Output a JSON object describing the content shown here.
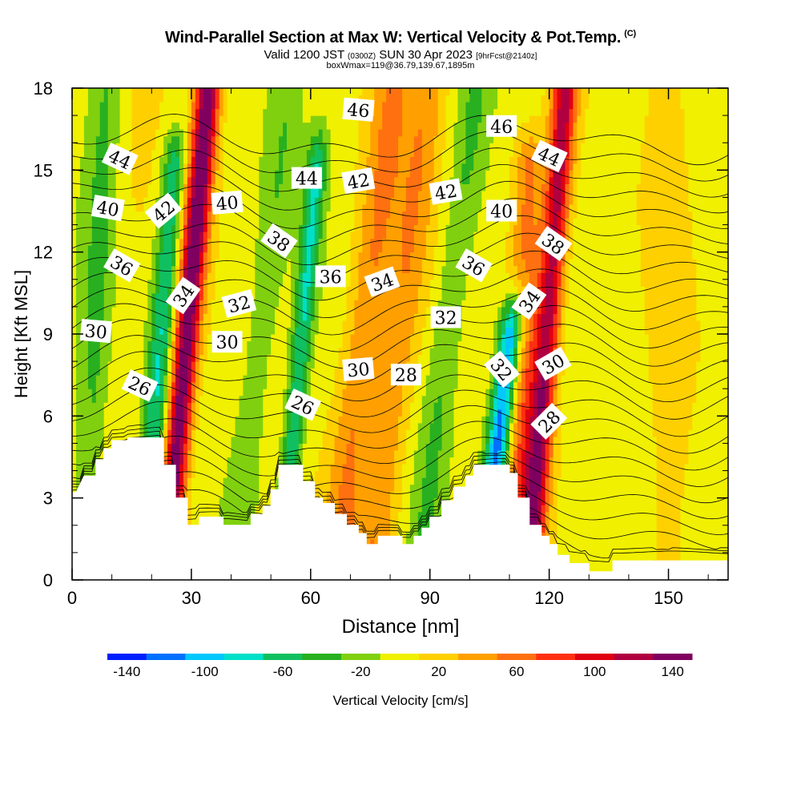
{
  "title": {
    "main": "Wind-Parallel Section at Max W: Vertical Velocity & Pot.Temp.",
    "copyright": "(C)",
    "valid_prefix": "Valid 1200 JST",
    "valid_utc": "(0300Z)",
    "valid_date": "SUN 30 Apr 2023",
    "forecast": "[9hrFcst@2140z]",
    "subtitle": "boxWmax=119@36.79,139.67,1895m"
  },
  "chart_data": {
    "type": "heatmap",
    "xlabel": "Distance [nm]",
    "ylabel": "Height [Kft MSL]",
    "xlim": [
      0,
      165
    ],
    "ylim": [
      0,
      18
    ],
    "x_ticks": [
      "0",
      "30",
      "60",
      "90",
      "120",
      "150"
    ],
    "y_ticks": [
      "0",
      "3",
      "6",
      "9",
      "12",
      "15",
      "18"
    ],
    "colorbar": {
      "label": "Vertical Velocity [cm/s]",
      "ticks": [
        "-140",
        "-100",
        "-60",
        "-20",
        "20",
        "60",
        "100",
        "140"
      ],
      "range": [
        -150,
        150
      ],
      "step": 20,
      "colors": [
        "#0020ff",
        "#0070ff",
        "#00c8ff",
        "#00e0c8",
        "#10c060",
        "#28b020",
        "#80d010",
        "#f0f000",
        "#ffd000",
        "#ffa000",
        "#ff7010",
        "#ff3010",
        "#e00010",
        "#b00040",
        "#800060"
      ]
    },
    "terrain_kft": [
      [
        0,
        3.2
      ],
      [
        1,
        3.2
      ],
      [
        3,
        3.8
      ],
      [
        6,
        3.8
      ],
      [
        6,
        4.4
      ],
      [
        8,
        4.4
      ],
      [
        8,
        4.8
      ],
      [
        10,
        4.8
      ],
      [
        10,
        5.1
      ],
      [
        14,
        5.1
      ],
      [
        14,
        5.2
      ],
      [
        23,
        5.2
      ],
      [
        23,
        4.2
      ],
      [
        26,
        4.2
      ],
      [
        26,
        3
      ],
      [
        29,
        3
      ],
      [
        29,
        2
      ],
      [
        32,
        2
      ],
      [
        32,
        2.3
      ],
      [
        38,
        2.3
      ],
      [
        38,
        2
      ],
      [
        45,
        2
      ],
      [
        45,
        2.4
      ],
      [
        48,
        2.4
      ],
      [
        48,
        2.7
      ],
      [
        50,
        2.7
      ],
      [
        50,
        3.3
      ],
      [
        52,
        3.3
      ],
      [
        52,
        4.2
      ],
      [
        58,
        4.2
      ],
      [
        58,
        3.6
      ],
      [
        61,
        3.6
      ],
      [
        61,
        3
      ],
      [
        63,
        3
      ],
      [
        63,
        2.8
      ],
      [
        66,
        2.8
      ],
      [
        66,
        2.4
      ],
      [
        69,
        2.4
      ],
      [
        69,
        2
      ],
      [
        72,
        2
      ],
      [
        72,
        1.7
      ],
      [
        74,
        1.7
      ],
      [
        74,
        1.3
      ],
      [
        77,
        1.3
      ],
      [
        77,
        1.6
      ],
      [
        83,
        1.6
      ],
      [
        83,
        1.3
      ],
      [
        86,
        1.3
      ],
      [
        86,
        1.6
      ],
      [
        88,
        1.6
      ],
      [
        88,
        1.9
      ],
      [
        90,
        1.9
      ],
      [
        90,
        2.3
      ],
      [
        93,
        2.3
      ],
      [
        93,
        2.9
      ],
      [
        96,
        2.9
      ],
      [
        96,
        3.4
      ],
      [
        99,
        3.4
      ],
      [
        99,
        3.8
      ],
      [
        101,
        3.8
      ],
      [
        101,
        4.2
      ],
      [
        110,
        4.2
      ],
      [
        110,
        3.9
      ],
      [
        112,
        3.9
      ],
      [
        112,
        3
      ],
      [
        115,
        3
      ],
      [
        115,
        2
      ],
      [
        118,
        2
      ],
      [
        118,
        1.6
      ],
      [
        120,
        1.6
      ],
      [
        120,
        1.3
      ],
      [
        122,
        1.3
      ],
      [
        122,
        0.9
      ],
      [
        125,
        0.9
      ],
      [
        125,
        0.6
      ],
      [
        130,
        0.6
      ],
      [
        130,
        0.3
      ],
      [
        134,
        0.3
      ],
      [
        134,
        0.3
      ],
      [
        136,
        0.3
      ],
      [
        136,
        0.7
      ],
      [
        165,
        0.7
      ]
    ],
    "updrafts": [
      {
        "x": 27,
        "amp": 150,
        "width": 3.2,
        "z_top": 18,
        "tilt": 0.6
      },
      {
        "x": 71,
        "amp": 50,
        "width": 5,
        "z_top": 18,
        "tilt": 0.8
      },
      {
        "x": 80,
        "amp": 45,
        "width": 5,
        "z_top": 18,
        "tilt": 0.8
      },
      {
        "x": 118,
        "amp": 120,
        "width": 3.2,
        "z_top": 18,
        "tilt": 0.5
      },
      {
        "x": 113,
        "amp": 60,
        "width": 4,
        "z_top": 15,
        "tilt": 0.2
      },
      {
        "x": 12,
        "amp": 10,
        "width": 6,
        "z_top": 18,
        "tilt": 0.5
      },
      {
        "x": 150,
        "amp": 20,
        "width": 6,
        "z_top": 18,
        "tilt": 0
      }
    ],
    "downdrafts": [
      {
        "x": 21,
        "amp": -70,
        "width": 3,
        "z_top": 15,
        "tilt": 0.5
      },
      {
        "x": 56,
        "amp": -70,
        "width": 2.5,
        "z_top": 15,
        "tilt": 0.6
      },
      {
        "x": 108,
        "amp": -130,
        "width": 3,
        "z_top": 9,
        "tilt": 0.8
      },
      {
        "x": 92,
        "amp": -30,
        "width": 4,
        "z_top": 18,
        "tilt": 0.8
      },
      {
        "x": 45,
        "amp": -25,
        "width": 4,
        "z_top": 18,
        "tilt": 0.8
      },
      {
        "x": 5,
        "amp": -35,
        "width": 4,
        "z_top": 18,
        "tilt": 0.3
      }
    ],
    "contour_labels": [
      {
        "text": "44",
        "x": 12,
        "z": 15.4,
        "rot": 25
      },
      {
        "text": "40",
        "x": 9,
        "z": 13.6,
        "rot": 10
      },
      {
        "text": "36",
        "x": 12.5,
        "z": 11.5,
        "rot": 30
      },
      {
        "text": "30",
        "x": 6,
        "z": 9.1,
        "rot": 5
      },
      {
        "text": "26",
        "x": 17,
        "z": 7.1,
        "rot": 25
      },
      {
        "text": "42",
        "x": 23,
        "z": 13.5,
        "rot": -40
      },
      {
        "text": "34",
        "x": 28,
        "z": 10.4,
        "rot": -55
      },
      {
        "text": "40",
        "x": 39,
        "z": 13.8,
        "rot": -5
      },
      {
        "text": "32",
        "x": 42,
        "z": 10.1,
        "rot": -15
      },
      {
        "text": "30",
        "x": 39,
        "z": 8.7,
        "rot": 0
      },
      {
        "text": "38",
        "x": 52,
        "z": 12.4,
        "rot": 35
      },
      {
        "text": "44",
        "x": 59,
        "z": 14.7,
        "rot": 0
      },
      {
        "text": "36",
        "x": 65,
        "z": 11.1,
        "rot": 0
      },
      {
        "text": "26",
        "x": 58,
        "z": 6.4,
        "rot": 25
      },
      {
        "text": "46",
        "x": 72,
        "z": 17.2,
        "rot": 5
      },
      {
        "text": "42",
        "x": 72,
        "z": 14.6,
        "rot": -10
      },
      {
        "text": "34",
        "x": 78,
        "z": 10.9,
        "rot": -20
      },
      {
        "text": "30",
        "x": 72,
        "z": 7.7,
        "rot": -5
      },
      {
        "text": "28",
        "x": 84,
        "z": 7.5,
        "rot": 0
      },
      {
        "text": "42",
        "x": 94,
        "z": 14.2,
        "rot": -10
      },
      {
        "text": "32",
        "x": 94,
        "z": 9.6,
        "rot": 0
      },
      {
        "text": "46",
        "x": 108,
        "z": 16.6,
        "rot": 0
      },
      {
        "text": "40",
        "x": 108,
        "z": 13.5,
        "rot": 0
      },
      {
        "text": "36",
        "x": 101,
        "z": 11.5,
        "rot": 30
      },
      {
        "text": "32",
        "x": 108,
        "z": 7.7,
        "rot": 50
      },
      {
        "text": "44",
        "x": 120,
        "z": 15.5,
        "rot": 25
      },
      {
        "text": "38",
        "x": 121,
        "z": 12.3,
        "rot": 35
      },
      {
        "text": "34",
        "x": 115,
        "z": 10.2,
        "rot": -55
      },
      {
        "text": "30",
        "x": 121,
        "z": 7.9,
        "rot": -30
      },
      {
        "text": "28",
        "x": 120,
        "z": 5.8,
        "rot": -45
      }
    ],
    "theta_levels": [
      23,
      24,
      25,
      26,
      27,
      28,
      29,
      30,
      31,
      32,
      33,
      34,
      35,
      36,
      37,
      38,
      39,
      40,
      41,
      42,
      43,
      44,
      45,
      46,
      47,
      48
    ]
  }
}
